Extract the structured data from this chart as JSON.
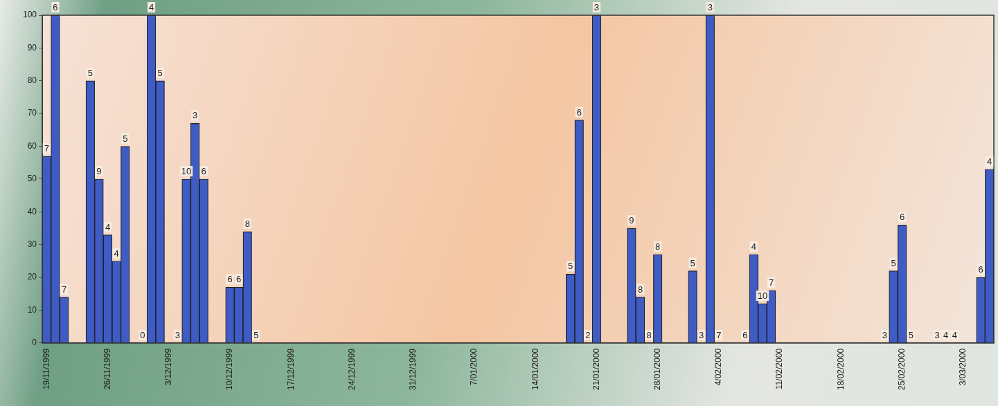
{
  "chart_data": {
    "type": "bar",
    "color": "#3f5bc4",
    "x": [
      "1999-11-19",
      "1999-11-20",
      "1999-11-21",
      "1999-11-24",
      "1999-11-25",
      "1999-11-26",
      "1999-11-27",
      "1999-11-28",
      "1999-11-30",
      "1999-12-01",
      "1999-12-02",
      "1999-12-04",
      "1999-12-05",
      "1999-12-06",
      "1999-12-07",
      "1999-12-10",
      "1999-12-11",
      "1999-12-12",
      "1999-12-13",
      "2000-01-18",
      "2000-01-19",
      "2000-01-20",
      "2000-01-21",
      "2000-01-25",
      "2000-01-26",
      "2000-01-27",
      "2000-01-28",
      "2000-02-01",
      "2000-02-02",
      "2000-02-03",
      "2000-02-04",
      "2000-02-07",
      "2000-02-08",
      "2000-02-09",
      "2000-02-10",
      "2000-02-23",
      "2000-02-24",
      "2000-02-25",
      "2000-02-26",
      "2000-02-29",
      "2000-03-01",
      "2000-03-02",
      "2000-03-05",
      "2000-03-06"
    ],
    "values": [
      57,
      100,
      14,
      80,
      50,
      33,
      25,
      60,
      0,
      100,
      80,
      0,
      50,
      67,
      50,
      17,
      17,
      34,
      0,
      21,
      68,
      0,
      100,
      35,
      14,
      0,
      27,
      22,
      0,
      100,
      0,
      0,
      27,
      12,
      16,
      0,
      22,
      36,
      0,
      0,
      0,
      0,
      20,
      53
    ],
    "annotations": [
      {
        "text": "7",
        "x": "1999-11-19",
        "y": 57
      },
      {
        "text": "6",
        "x": "1999-11-20",
        "y": 100
      },
      {
        "text": "7",
        "x": "1999-11-21",
        "y": 14
      },
      {
        "text": "5",
        "x": "1999-11-24",
        "y": 80
      },
      {
        "text": "9",
        "x": "1999-11-25",
        "y": 50
      },
      {
        "text": "4",
        "x": "1999-11-26",
        "y": 33
      },
      {
        "text": "4",
        "x": "1999-11-27",
        "y": 25
      },
      {
        "text": "5",
        "x": "1999-11-28",
        "y": 60
      },
      {
        "text": "0",
        "x": "1999-11-30",
        "y": 0
      },
      {
        "text": "4",
        "x": "1999-12-01",
        "y": 100
      },
      {
        "text": "5",
        "x": "1999-12-02",
        "y": 80
      },
      {
        "text": "3",
        "x": "1999-12-04",
        "y": 0
      },
      {
        "text": "10",
        "x": "1999-12-05",
        "y": 50
      },
      {
        "text": "3",
        "x": "1999-12-06",
        "y": 67
      },
      {
        "text": "6",
        "x": "1999-12-07",
        "y": 50
      },
      {
        "text": "6",
        "x": "1999-12-10",
        "y": 17
      },
      {
        "text": "6",
        "x": "1999-12-11",
        "y": 17
      },
      {
        "text": "8",
        "x": "1999-12-12",
        "y": 34
      },
      {
        "text": "5",
        "x": "1999-12-13",
        "y": 0
      },
      {
        "text": "5",
        "x": "2000-01-18",
        "y": 21
      },
      {
        "text": "6",
        "x": "2000-01-19",
        "y": 68
      },
      {
        "text": "2",
        "x": "2000-01-20",
        "y": 0
      },
      {
        "text": "3",
        "x": "2000-01-21",
        "y": 100
      },
      {
        "text": "9",
        "x": "2000-01-25",
        "y": 35
      },
      {
        "text": "8",
        "x": "2000-01-26",
        "y": 14
      },
      {
        "text": "8",
        "x": "2000-01-27",
        "y": 0
      },
      {
        "text": "8",
        "x": "2000-01-28",
        "y": 27
      },
      {
        "text": "5",
        "x": "2000-02-01",
        "y": 22
      },
      {
        "text": "3",
        "x": "2000-02-02",
        "y": 0
      },
      {
        "text": "3",
        "x": "2000-02-03",
        "y": 100
      },
      {
        "text": "7",
        "x": "2000-02-04",
        "y": 0
      },
      {
        "text": "6",
        "x": "2000-02-07",
        "y": 0
      },
      {
        "text": "4",
        "x": "2000-02-08",
        "y": 27
      },
      {
        "text": "10",
        "x": "2000-02-09",
        "y": 12
      },
      {
        "text": "7",
        "x": "2000-02-10",
        "y": 16
      },
      {
        "text": "3",
        "x": "2000-02-23",
        "y": 0
      },
      {
        "text": "5",
        "x": "2000-02-24",
        "y": 22
      },
      {
        "text": "6",
        "x": "2000-02-25",
        "y": 36
      },
      {
        "text": "5",
        "x": "2000-02-26",
        "y": 0
      },
      {
        "text": "3",
        "x": "2000-02-29",
        "y": 0
      },
      {
        "text": "4",
        "x": "2000-03-01",
        "y": 0
      },
      {
        "text": "4",
        "x": "2000-03-02",
        "y": 0
      },
      {
        "text": "6",
        "x": "2000-03-05",
        "y": 20
      },
      {
        "text": "4",
        "x": "2000-03-06",
        "y": 53
      }
    ],
    "xlim": [
      "1999-11-18T12:00",
      "2000-03-06T12:00"
    ],
    "xticks": [
      {
        "value": "1999-11-19",
        "label": "19/11/1999"
      },
      {
        "value": "1999-11-26",
        "label": "26/11/1999"
      },
      {
        "value": "1999-12-03",
        "label": "3/12/1999"
      },
      {
        "value": "1999-12-10",
        "label": "10/12/1999"
      },
      {
        "value": "1999-12-17",
        "label": "17/12/1999"
      },
      {
        "value": "1999-12-24",
        "label": "24/12/1999"
      },
      {
        "value": "1999-12-31",
        "label": "31/12/1999"
      },
      {
        "value": "2000-01-07",
        "label": "7/01/2000"
      },
      {
        "value": "2000-01-14",
        "label": "14/01/2000"
      },
      {
        "value": "2000-01-21",
        "label": "21/01/2000"
      },
      {
        "value": "2000-01-28",
        "label": "28/01/2000"
      },
      {
        "value": "2000-02-04",
        "label": "4/02/2000"
      },
      {
        "value": "2000-02-11",
        "label": "11/02/2000"
      },
      {
        "value": "2000-02-18",
        "label": "18/02/2000"
      },
      {
        "value": "2000-02-25",
        "label": "25/02/2000"
      },
      {
        "value": "2000-03-03",
        "label": "3/03/2000"
      }
    ],
    "ylim": [
      0,
      100
    ],
    "yticks": [
      0,
      10,
      20,
      30,
      40,
      50,
      60,
      70,
      80,
      90,
      100
    ],
    "grid": false,
    "legend": false
  }
}
